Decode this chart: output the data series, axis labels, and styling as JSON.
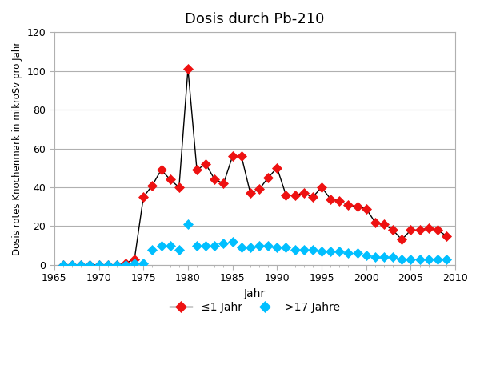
{
  "title": "Dosis durch Pb-210",
  "xlabel": "Jahr",
  "ylabel": "Dosis rotes Knochenmark in mikroSv pro Jahr",
  "xlim": [
    1965,
    2010
  ],
  "ylim": [
    0,
    120
  ],
  "yticks": [
    0,
    20,
    40,
    60,
    80,
    100,
    120
  ],
  "xticks": [
    1965,
    1970,
    1975,
    1980,
    1985,
    1990,
    1995,
    2000,
    2005,
    2010
  ],
  "series1_label": "≤1 Jahr",
  "series2_label": ">17 Jahre",
  "series1_color": "#EE1111",
  "series2_color": "#00BFFF",
  "line_color": "#000000",
  "series1_x": [
    1966,
    1967,
    1968,
    1969,
    1970,
    1971,
    1972,
    1973,
    1974,
    1975,
    1976,
    1977,
    1978,
    1979,
    1980,
    1981,
    1982,
    1983,
    1984,
    1985,
    1986,
    1987,
    1988,
    1989,
    1990,
    1991,
    1992,
    1993,
    1994,
    1995,
    1996,
    1997,
    1998,
    1999,
    2000,
    2001,
    2002,
    2003,
    2004,
    2005,
    2006,
    2007,
    2008,
    2009
  ],
  "series1_y": [
    0,
    0,
    0,
    0,
    0,
    0,
    0,
    1,
    3,
    35,
    41,
    49,
    44,
    40,
    101,
    49,
    52,
    44,
    42,
    56,
    56,
    37,
    39,
    45,
    50,
    36,
    36,
    37,
    35,
    40,
    34,
    33,
    31,
    30,
    29,
    22,
    21,
    18,
    13,
    18,
    18,
    19,
    18,
    15
  ],
  "series2_x": [
    1966,
    1967,
    1968,
    1969,
    1970,
    1971,
    1972,
    1973,
    1974,
    1975,
    1976,
    1977,
    1978,
    1979,
    1980,
    1981,
    1982,
    1983,
    1984,
    1985,
    1986,
    1987,
    1988,
    1989,
    1990,
    1991,
    1992,
    1993,
    1994,
    1995,
    1996,
    1997,
    1998,
    1999,
    2000,
    2001,
    2002,
    2003,
    2004,
    2005,
    2006,
    2007,
    2008,
    2009
  ],
  "series2_y": [
    0,
    0,
    0,
    0,
    0,
    0,
    0,
    0,
    1,
    1,
    8,
    10,
    10,
    8,
    21,
    10,
    10,
    10,
    11,
    12,
    9,
    9,
    10,
    10,
    9,
    9,
    8,
    8,
    8,
    7,
    7,
    7,
    6,
    6,
    5,
    4,
    4,
    4,
    3,
    3,
    3,
    3,
    3,
    3
  ],
  "background_color": "#ffffff",
  "grid_color": "#b0b0b0",
  "marker_size": 6,
  "linewidth": 1.0
}
